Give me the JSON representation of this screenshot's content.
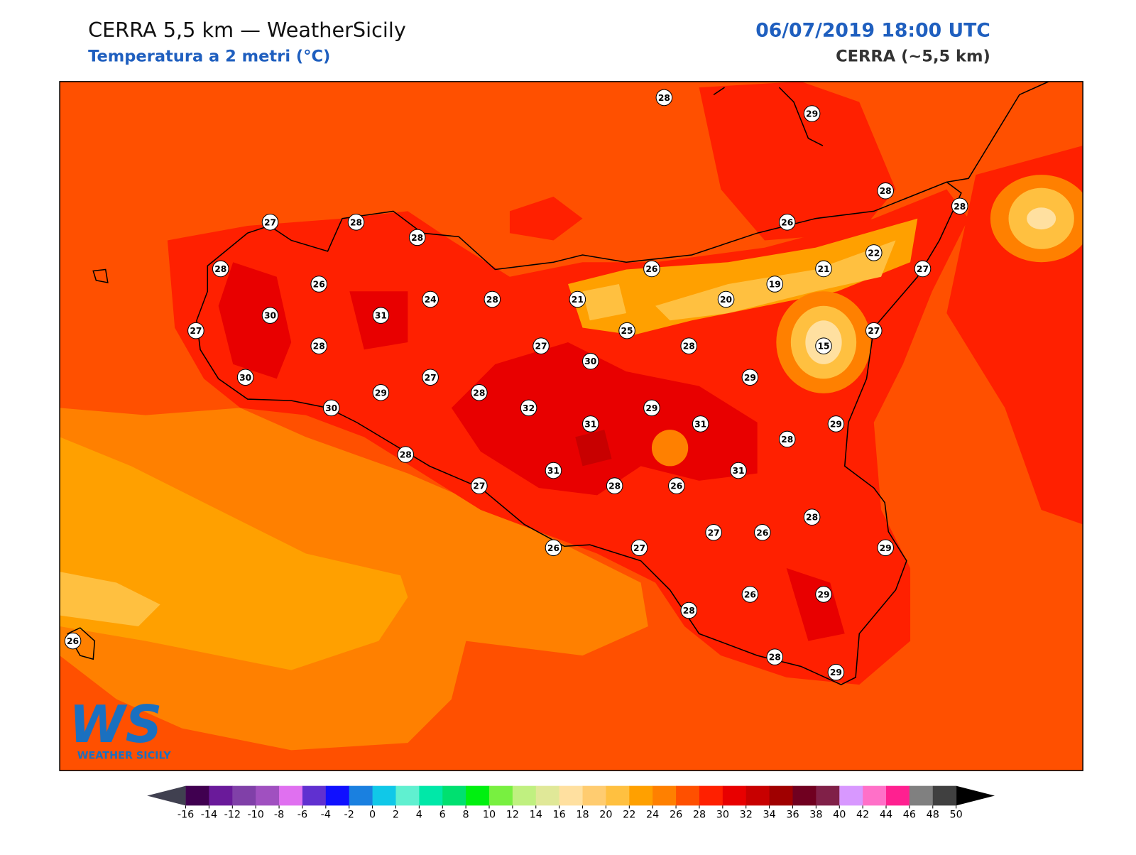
{
  "header": {
    "title": "CERRA 5,5 km — WeatherSicily",
    "subtitle": "Temperatura a 2 metri (°C)",
    "date": "06/07/2019 18:00 UTC",
    "model": "CERRA (~5,5 km)"
  },
  "stations": [
    28,
    29,
    28,
    28,
    26,
    27,
    28,
    28,
    22,
    21,
    28,
    26,
    27,
    26,
    19,
    24,
    28,
    21,
    20,
    30,
    31,
    27,
    25,
    27,
    15,
    28,
    27,
    28,
    30,
    30,
    27,
    29,
    29,
    28,
    30,
    32,
    29,
    31,
    31,
    29,
    28,
    28,
    31,
    31,
    27,
    28,
    26,
    28,
    27,
    26,
    26,
    27,
    29,
    26,
    29,
    28,
    26,
    28,
    29
  ],
  "colorbar": {
    "ticks": [
      -16,
      -14,
      -12,
      -10,
      -8,
      -6,
      -4,
      -2,
      0,
      2,
      4,
      6,
      8,
      10,
      12,
      14,
      16,
      18,
      20,
      22,
      24,
      26,
      28,
      30,
      32,
      34,
      36,
      38,
      40,
      42,
      44,
      46,
      48,
      50
    ]
  },
  "logo": {
    "mark": "WS",
    "name": "Weather Sicily"
  }
}
